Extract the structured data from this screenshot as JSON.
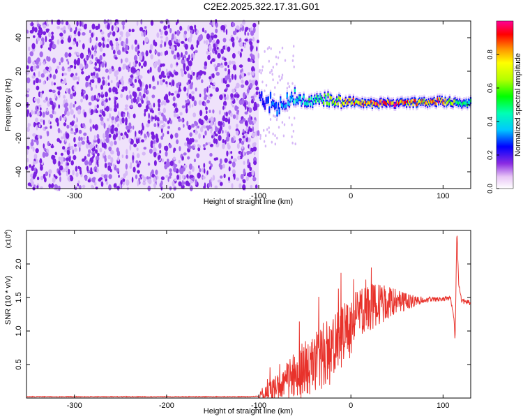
{
  "figure_title": "C2E2.2025.322.17.31.G01",
  "chart_data": [
    {
      "type": "heatmap",
      "xlabel": "Height of straight line (km)",
      "ylabel": "Frequency (Hz)",
      "xlim": [
        -352,
        130
      ],
      "ylim": [
        -50,
        50
      ],
      "x_ticks": [
        -300,
        -200,
        -100,
        0,
        100
      ],
      "y_ticks": [
        -40,
        -20,
        0,
        20,
        40
      ],
      "noise_region": [
        -352,
        -100
      ],
      "signal_trace": {
        "x": [
          -100,
          -90,
          -80,
          -70,
          -60,
          -50,
          -40,
          -30,
          -20,
          -10,
          0,
          10,
          20,
          40,
          60,
          80,
          95,
          105,
          112,
          115,
          120,
          130
        ],
        "freq": [
          3,
          1,
          -1,
          2,
          4,
          2,
          3,
          4,
          2,
          1,
          2,
          1,
          1,
          1,
          1,
          1.5,
          2,
          2,
          1,
          2,
          1,
          1
        ],
        "amplitude": [
          0.2,
          0.3,
          0.35,
          0.4,
          0.45,
          0.5,
          0.55,
          0.6,
          0.7,
          0.8,
          0.85,
          0.9,
          0.95,
          1.0,
          0.95,
          0.85,
          0.95,
          0.85,
          0.7,
          0.5,
          0.6,
          0.5
        ]
      },
      "colorbar": {
        "label": "Normalized spectral amplitude",
        "range": [
          0,
          1
        ],
        "ticks": [
          "0.0",
          "0.2",
          "0.4",
          "0.6",
          "0.8"
        ],
        "tick_values": [
          0.0,
          0.2,
          0.4,
          0.6,
          0.8
        ]
      }
    },
    {
      "type": "line",
      "xlabel": "Height of straight line (km)",
      "ylabel": "SNR (10 * v/v)",
      "multiplier_label": "(x10",
      "multiplier_exp": "4",
      "multiplier_close": ")",
      "xlim": [
        -352,
        130
      ],
      "ylim": [
        0,
        2.5
      ],
      "x_ticks": [
        -300,
        -200,
        -100,
        0,
        100
      ],
      "y_ticks": [
        "0.5",
        "1.0",
        "1.5",
        "2.0"
      ],
      "y_tick_values": [
        0.5,
        1.0,
        1.5,
        2.0
      ],
      "series": [
        {
          "name": "SNR",
          "color": "#e8322b",
          "x": [
            -352,
            -300,
            -200,
            -110,
            -100,
            -90,
            -80,
            -70,
            -60,
            -50,
            -40,
            -30,
            -20,
            -10,
            0,
            10,
            20,
            30,
            40,
            60,
            80,
            100,
            108,
            112,
            113,
            115,
            117,
            120,
            130
          ],
          "y": [
            0.02,
            0.02,
            0.02,
            0.02,
            0.03,
            0.1,
            0.2,
            0.3,
            0.35,
            0.45,
            0.55,
            0.65,
            0.75,
            0.95,
            1.1,
            1.3,
            1.38,
            1.42,
            1.45,
            1.45,
            1.47,
            1.48,
            1.5,
            1.2,
            0.8,
            2.5,
            1.7,
            1.45,
            1.42
          ]
        }
      ],
      "noise_start": -100,
      "noise_amplitude": [
        0.05,
        0.18,
        0.3,
        0.4,
        0.45,
        0.5,
        0.45,
        0.4,
        0.3,
        0.2,
        0.1,
        0.04,
        0.03,
        0.03,
        0.04
      ]
    }
  ]
}
